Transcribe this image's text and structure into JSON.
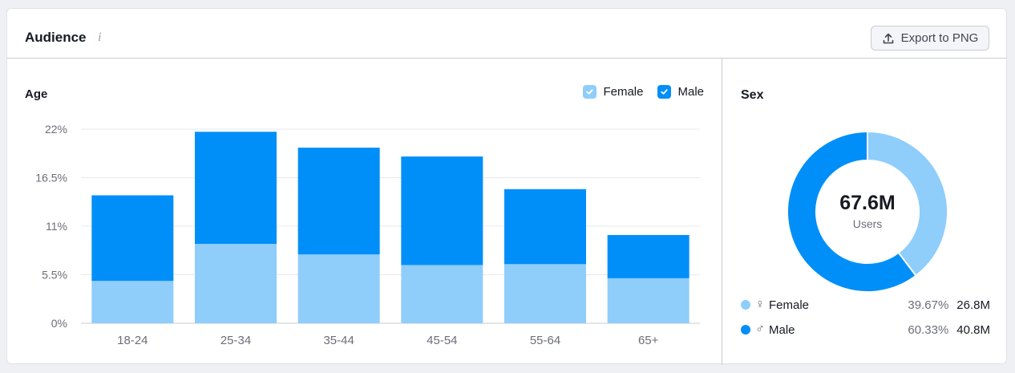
{
  "card": {
    "title": "Audience",
    "info_icon": "i",
    "export_label": "Export to PNG"
  },
  "colors": {
    "female": "#8fcdfb",
    "male": "#008ff8"
  },
  "age": {
    "title": "Age",
    "legend": [
      {
        "label": "Female",
        "checked": true
      },
      {
        "label": "Male",
        "checked": true
      }
    ]
  },
  "sex": {
    "title": "Sex",
    "total": "67.6M",
    "total_label": "Users",
    "rows": [
      {
        "label": "Female",
        "symbol": "♀",
        "percent": "39.67%",
        "count": "26.8M"
      },
      {
        "label": "Male",
        "symbol": "♂",
        "percent": "60.33%",
        "count": "40.8M"
      }
    ]
  },
  "chart_data": [
    {
      "type": "bar",
      "stacked": true,
      "title": "Age",
      "categories": [
        "18-24",
        "25-34",
        "35-44",
        "45-54",
        "55-64",
        "65+"
      ],
      "series": [
        {
          "name": "Female",
          "values": [
            4.8,
            9.0,
            7.8,
            6.6,
            6.7,
            5.1
          ]
        },
        {
          "name": "Male",
          "values": [
            9.7,
            12.7,
            12.1,
            12.3,
            8.5,
            4.9
          ]
        }
      ],
      "y_ticks": [
        "0%",
        "5.5%",
        "11%",
        "16.5%",
        "22%"
      ],
      "ylim": [
        0,
        22
      ],
      "grid": true,
      "legend_position": "top-right"
    },
    {
      "type": "pie",
      "donut": true,
      "title": "Sex",
      "labels": [
        "Female",
        "Male"
      ],
      "values": [
        39.67,
        60.33
      ]
    }
  ]
}
